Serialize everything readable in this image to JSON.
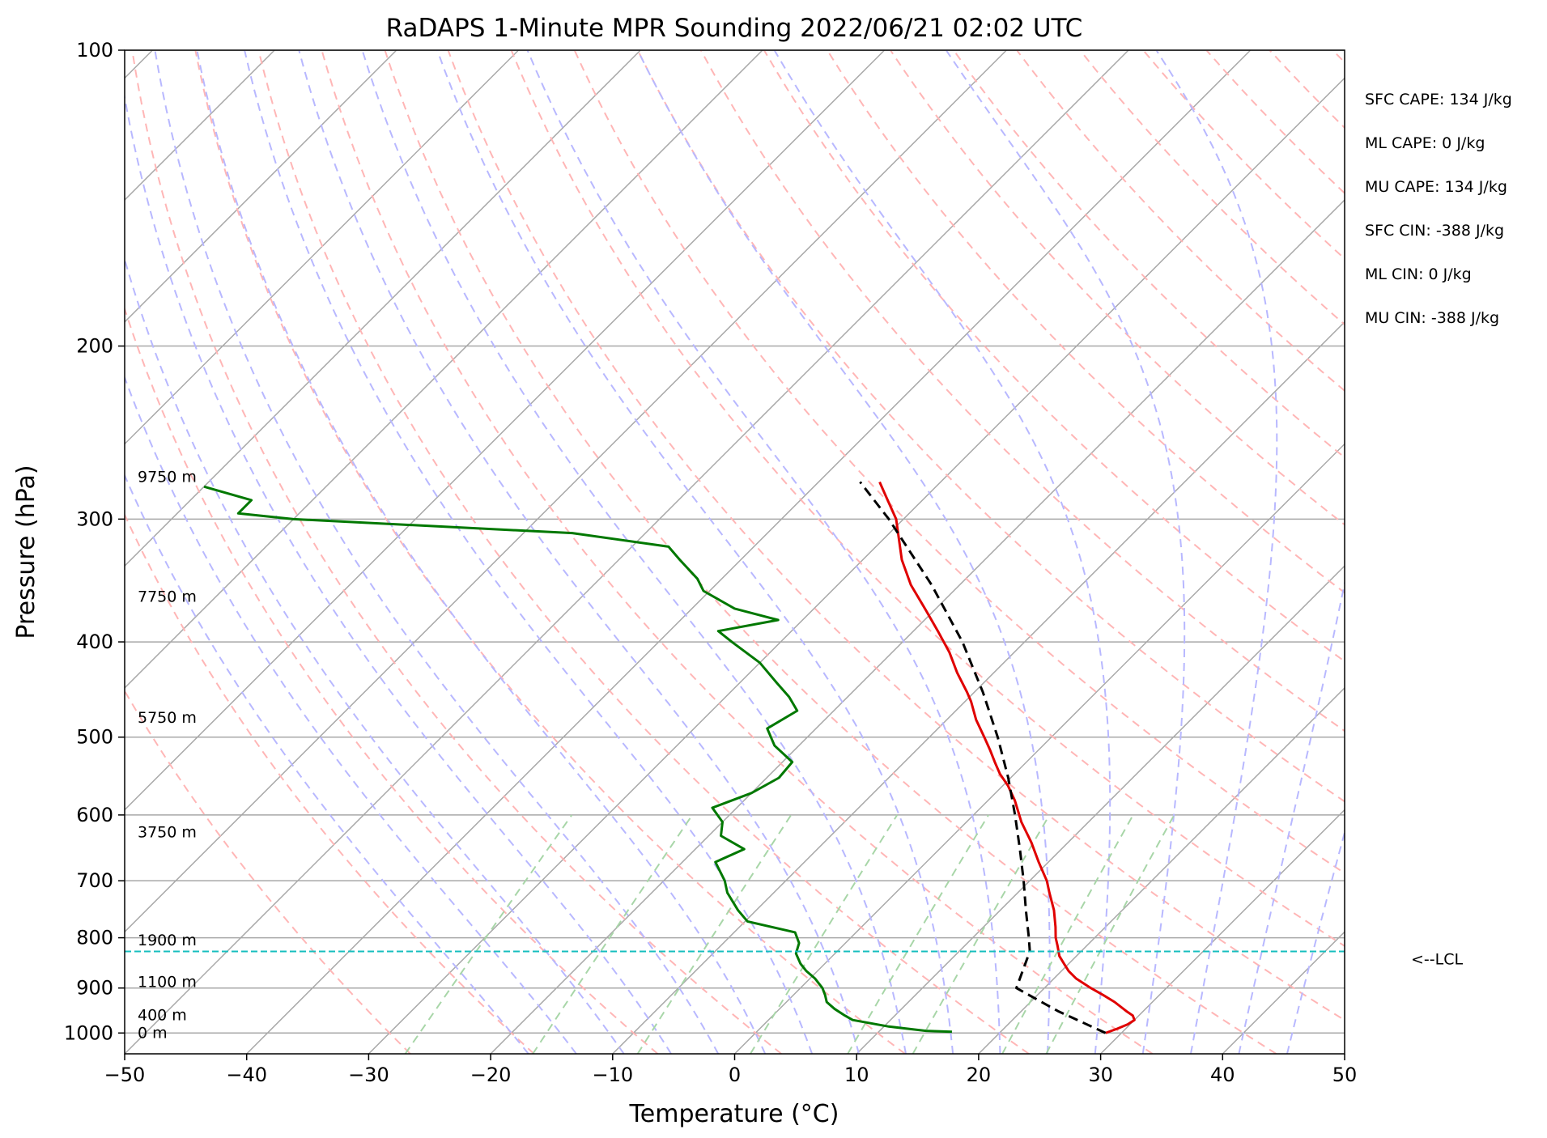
{
  "chart_data": {
    "type": "line",
    "title": "RaDAPS 1-Minute MPR Sounding 2022/06/21 02:02 UTC",
    "xlabel": "Temperature (°C)",
    "ylabel": "Pressure (hPa)",
    "xlim": [
      -50,
      50
    ],
    "ylim": [
      1050,
      100
    ],
    "y_scale": "log",
    "skew_t": true,
    "grid": true,
    "x_ticks": [
      -50,
      -40,
      -30,
      -20,
      -10,
      0,
      10,
      20,
      30,
      40,
      50
    ],
    "x_tick_labels": [
      "−50",
      "−40",
      "−30",
      "−20",
      "−10",
      "0",
      "10",
      "20",
      "30",
      "40",
      "50"
    ],
    "y_ticks": [
      1000,
      900,
      800,
      700,
      600,
      500,
      400,
      300,
      200,
      100
    ],
    "y_tick_labels": [
      "1000",
      "900",
      "800",
      "700",
      "600",
      "500",
      "400",
      "300",
      "200",
      "100"
    ],
    "series": [
      {
        "key": "temperature",
        "color": "#e00000",
        "points": [
          {
            "p": 1000,
            "t": 28.7
          },
          {
            "p": 990,
            "t": 29.3
          },
          {
            "p": 980,
            "t": 29.8
          },
          {
            "p": 970,
            "t": 30.0
          },
          {
            "p": 960,
            "t": 29.5
          },
          {
            "p": 950,
            "t": 28.6
          },
          {
            "p": 930,
            "t": 26.9
          },
          {
            "p": 915,
            "t": 25.4
          },
          {
            "p": 900,
            "t": 23.8
          },
          {
            "p": 880,
            "t": 21.8
          },
          {
            "p": 865,
            "t": 20.6
          },
          {
            "p": 850,
            "t": 19.6
          },
          {
            "p": 835,
            "t": 18.6
          },
          {
            "p": 815,
            "t": 17.6
          },
          {
            "p": 800,
            "t": 16.8
          },
          {
            "p": 780,
            "t": 15.9
          },
          {
            "p": 750,
            "t": 14.4
          },
          {
            "p": 720,
            "t": 12.6
          },
          {
            "p": 700,
            "t": 11.4
          },
          {
            "p": 670,
            "t": 9.2
          },
          {
            "p": 640,
            "t": 7.0
          },
          {
            "p": 610,
            "t": 4.5
          },
          {
            "p": 580,
            "t": 2.2
          },
          {
            "p": 560,
            "t": 0.4
          },
          {
            "p": 545,
            "t": -1.2
          },
          {
            "p": 530,
            "t": -2.6
          },
          {
            "p": 515,
            "t": -4.0
          },
          {
            "p": 500,
            "t": -5.5
          },
          {
            "p": 480,
            "t": -7.6
          },
          {
            "p": 460,
            "t": -9.5
          },
          {
            "p": 450,
            "t": -10.6
          },
          {
            "p": 430,
            "t": -13.0
          },
          {
            "p": 410,
            "t": -15.3
          },
          {
            "p": 390,
            "t": -18.0
          },
          {
            "p": 370,
            "t": -20.9
          },
          {
            "p": 350,
            "t": -24.0
          },
          {
            "p": 330,
            "t": -26.8
          },
          {
            "p": 300,
            "t": -30.6
          },
          {
            "p": 285,
            "t": -33.2
          },
          {
            "p": 275,
            "t": -35.0
          }
        ]
      },
      {
        "key": "dewpoint",
        "color": "#007800",
        "points": [
          {
            "p": 997,
            "t": 16.0
          },
          {
            "p": 995,
            "t": 13.8
          },
          {
            "p": 985,
            "t": 10.4
          },
          {
            "p": 970,
            "t": 6.9
          },
          {
            "p": 960,
            "t": 5.9
          },
          {
            "p": 945,
            "t": 4.5
          },
          {
            "p": 930,
            "t": 3.3
          },
          {
            "p": 915,
            "t": 2.6
          },
          {
            "p": 900,
            "t": 1.8
          },
          {
            "p": 880,
            "t": 0.4
          },
          {
            "p": 865,
            "t": -0.9
          },
          {
            "p": 850,
            "t": -2.0
          },
          {
            "p": 830,
            "t": -3.2
          },
          {
            "p": 810,
            "t": -3.8
          },
          {
            "p": 790,
            "t": -5.0
          },
          {
            "p": 770,
            "t": -9.8
          },
          {
            "p": 750,
            "t": -11.5
          },
          {
            "p": 720,
            "t": -13.8
          },
          {
            "p": 700,
            "t": -15.0
          },
          {
            "p": 670,
            "t": -17.3
          },
          {
            "p": 650,
            "t": -16.0
          },
          {
            "p": 630,
            "t": -19.0
          },
          {
            "p": 610,
            "t": -20.0
          },
          {
            "p": 590,
            "t": -22.0
          },
          {
            "p": 570,
            "t": -20.0
          },
          {
            "p": 550,
            "t": -19.0
          },
          {
            "p": 530,
            "t": -19.2
          },
          {
            "p": 510,
            "t": -22.0
          },
          {
            "p": 490,
            "t": -24.0
          },
          {
            "p": 470,
            "t": -23.0
          },
          {
            "p": 455,
            "t": -24.8
          },
          {
            "p": 440,
            "t": -27.0
          },
          {
            "p": 420,
            "t": -30.0
          },
          {
            "p": 400,
            "t": -34.0
          },
          {
            "p": 390,
            "t": -36.0
          },
          {
            "p": 380,
            "t": -32.0
          },
          {
            "p": 370,
            "t": -36.5
          },
          {
            "p": 355,
            "t": -40.5
          },
          {
            "p": 345,
            "t": -42.0
          },
          {
            "p": 330,
            "t": -45.0
          },
          {
            "p": 320,
            "t": -47.0
          },
          {
            "p": 310,
            "t": -56.0
          },
          {
            "p": 300,
            "t": -80.0
          },
          {
            "p": 296,
            "t": -85.0
          },
          {
            "p": 287,
            "t": -85.0
          },
          {
            "p": 278,
            "t": -90.0
          }
        ]
      },
      {
        "key": "parcel",
        "color": "#000000",
        "dashed": true,
        "points": [
          {
            "p": 1000,
            "t": 28.7
          },
          {
            "p": 950,
            "t": 23.0
          },
          {
            "p": 900,
            "t": 17.7
          },
          {
            "p": 826,
            "t": 15.8
          },
          {
            "p": 800,
            "t": 14.6
          },
          {
            "p": 750,
            "t": 12.1
          },
          {
            "p": 700,
            "t": 9.5
          },
          {
            "p": 650,
            "t": 6.6
          },
          {
            "p": 600,
            "t": 3.4
          },
          {
            "p": 550,
            "t": -0.2
          },
          {
            "p": 500,
            "t": -4.4
          },
          {
            "p": 450,
            "t": -9.3
          },
          {
            "p": 400,
            "t": -15.1
          },
          {
            "p": 350,
            "t": -22.3
          },
          {
            "p": 300,
            "t": -31.2
          },
          {
            "p": 275,
            "t": -36.6
          }
        ]
      }
    ],
    "height_labels": [
      {
        "label": "9750 m",
        "p": 272
      },
      {
        "label": "7750 m",
        "p": 360
      },
      {
        "label": "5750 m",
        "p": 478
      },
      {
        "label": "3750 m",
        "p": 625
      },
      {
        "label": "1900 m",
        "p": 805
      },
      {
        "label": "1100 m",
        "p": 888
      },
      {
        "label": "400 m",
        "p": 960
      },
      {
        "label": "0 m",
        "p": 1000
      }
    ],
    "lcl": {
      "p": 826,
      "label": "<--LCL",
      "color": "#17bfbf"
    },
    "indices": [
      "SFC CAPE: 134 J/kg",
      "ML CAPE: 0 J/kg",
      "MU CAPE: 134 J/kg",
      "SFC CIN: -388 J/kg",
      "ML CIN: 0 J/kg",
      "MU CIN: -388 J/kg"
    ],
    "background_lines": {
      "isotherm_color": "#a8a8a8",
      "dry_adiabat_color": "#ffb6b6",
      "moist_adiabat_color": "#b8b8ff",
      "mixing_ratio_color": "#a8d6a8"
    }
  }
}
